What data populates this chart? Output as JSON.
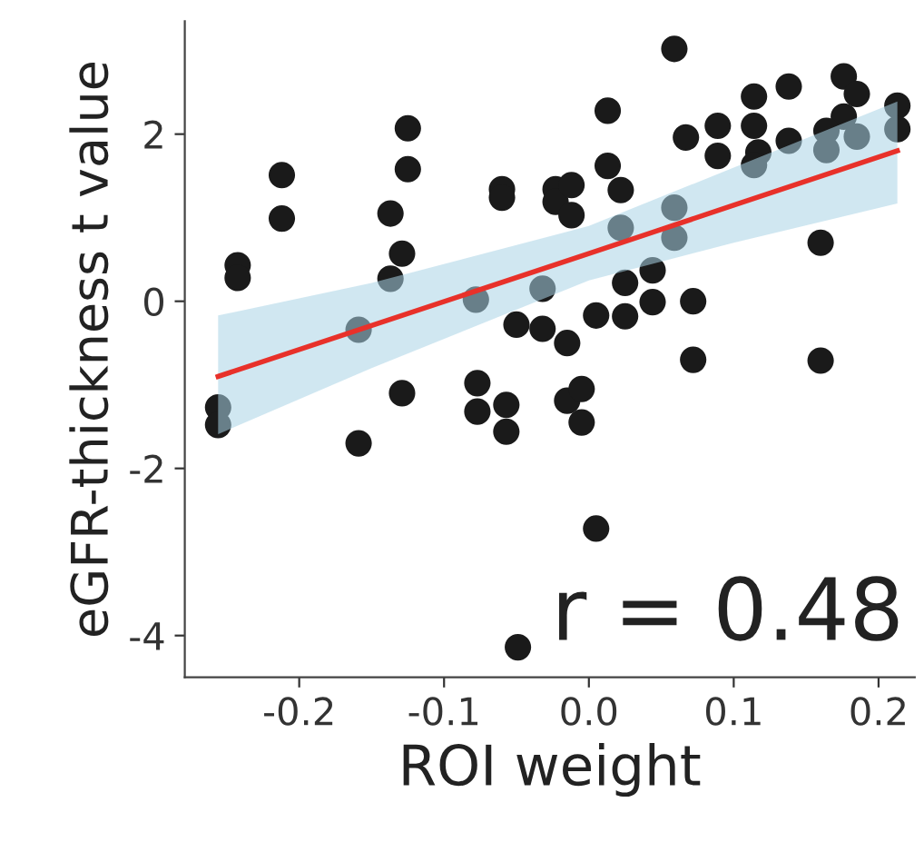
{
  "chart_data": {
    "type": "scatter",
    "xlabel": "ROI weight",
    "ylabel": "eGFR-thickness t value",
    "xlim": [
      -0.279,
      0.225
    ],
    "ylim": [
      -4.5,
      3.35
    ],
    "xticks": [
      -0.2,
      -0.1,
      {
        "value": 0,
        "label": "0.0"
      },
      0.1,
      0.2
    ],
    "yticks": [
      -4,
      -2,
      0,
      2
    ],
    "grid": false,
    "legend": false,
    "marker": "circle",
    "annotations": [
      "r = 0.48"
    ],
    "series": [
      {
        "color": "#1a1a1a",
        "x": [
          -0.2425,
          -0.2425,
          -0.212,
          -0.212,
          -0.125,
          -0.125,
          -0.137,
          -0.129,
          -0.137,
          -0.159,
          -0.078,
          -0.06,
          -0.06,
          -0.05,
          -0.032,
          -0.015,
          -0.032,
          -0.023,
          -0.023,
          -0.012,
          -0.012,
          0.005,
          0.025,
          0.025,
          0.044,
          0.044,
          0.072,
          0.072,
          0.013,
          0.013,
          0.022,
          0.022,
          0.059,
          0.067,
          0.059,
          0.059,
          0.089,
          0.089,
          0.114,
          0.114,
          0.117,
          0.114,
          0.138,
          0.138,
          0.16,
          0.16,
          0.176,
          0.185,
          0.176,
          0.164,
          0.164,
          0.185,
          0.213,
          0.213,
          -0.256,
          -0.256,
          -0.159,
          -0.129,
          -0.077,
          -0.077,
          -0.057,
          -0.057,
          -0.015,
          -0.005,
          -0.005,
          0.005,
          -0.049
        ],
        "values": [
          0.43,
          0.28,
          1.51,
          0.99,
          2.07,
          1.58,
          1.05,
          0.57,
          0.27,
          -0.34,
          0.02,
          1.34,
          1.24,
          -0.28,
          -0.33,
          -0.5,
          0.15,
          1.34,
          1.19,
          1.39,
          1.03,
          -0.17,
          -0.18,
          0.22,
          0.37,
          -0.01,
          0.0,
          -0.7,
          2.28,
          1.62,
          1.33,
          0.88,
          3.02,
          1.96,
          1.12,
          0.76,
          2.1,
          1.74,
          2.45,
          2.1,
          1.78,
          1.63,
          2.57,
          1.92,
          0.7,
          -0.71,
          2.69,
          2.48,
          2.21,
          2.04,
          1.81,
          1.97,
          2.34,
          2.06,
          -1.27,
          -1.48,
          -1.7,
          -1.1,
          -0.98,
          -1.32,
          -1.24,
          -1.56,
          -1.19,
          -1.05,
          -1.45,
          -2.72,
          -4.14
        ]
      },
      {
        "type": "line",
        "color": "#e8312a",
        "marker": "none",
        "line_style": "solid",
        "x": [
          -0.256,
          -0.15,
          0.0,
          0.1,
          0.213
        ],
        "values": [
          -0.9,
          -0.29,
          0.57,
          1.15,
          1.8
        ],
        "lower": [
          -1.59,
          -0.8,
          0.25,
          0.7,
          1.17
        ],
        "upper": [
          -0.17,
          0.22,
          0.9,
          1.6,
          2.39
        ]
      }
    ]
  }
}
